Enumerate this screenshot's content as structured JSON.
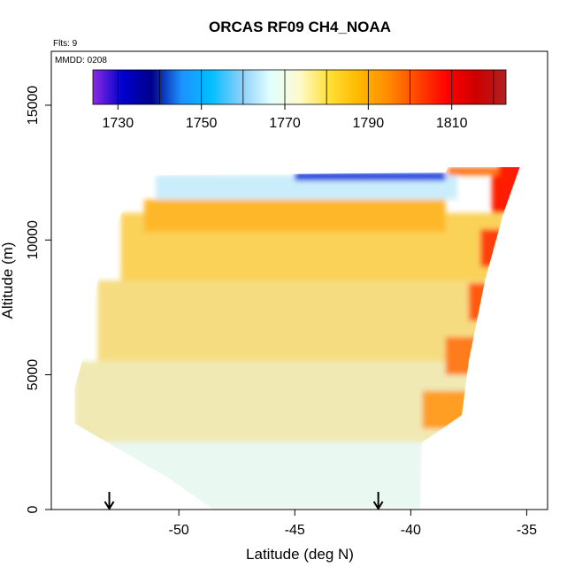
{
  "chart_data": {
    "type": "heatmap",
    "title": "ORCAS RF09 CH4_NOAA",
    "note_flights": "Flts: 9",
    "note_date": "MMDD: 0208",
    "xlabel": "Latitude (deg N)",
    "ylabel": "Altitude (m)",
    "xlim": [
      -55.5,
      -34.1
    ],
    "ylim": [
      0,
      17000
    ],
    "x_ticks": [
      -50,
      -45,
      -40,
      -35
    ],
    "x_tick_labels": [
      "-50",
      "-45",
      "-40",
      "-35"
    ],
    "y_ticks": [
      0,
      5000,
      10000,
      15000
    ],
    "y_tick_labels": [
      "0",
      "5000",
      "10000",
      "15000"
    ],
    "grid": false,
    "colorbar": {
      "placement": "top-inside",
      "range": [
        1724,
        1823
      ],
      "ticks": [
        1730,
        1750,
        1770,
        1790,
        1810
      ],
      "tick_labels": [
        "1730",
        "1750",
        "1770",
        "1790",
        "1810"
      ],
      "colors": [
        "#8a2be2",
        "#0000cd",
        "#00008b",
        "#1e90ff",
        "#00bfff",
        "#87cefa",
        "#e0ffff",
        "#fffacd",
        "#ffe135",
        "#ffb800",
        "#ff8c00",
        "#ff4500",
        "#ff0000",
        "#cd0000",
        "#b22222"
      ]
    },
    "flight_markers_lat": [
      -53,
      -41.4
    ],
    "color_legend": {
      "1730": "#1a1ad0",
      "1750": "#1e9cff",
      "1770": "#e8fbfb",
      "1790": "#ffc830",
      "1810": "#ff1e00"
    },
    "field_layers": [
      {
        "alt_range": [
          0,
          2500
        ],
        "lat_range": [
          -54.5,
          -39.5
        ],
        "value": 1771
      },
      {
        "alt_range": [
          2500,
          5500
        ],
        "lat_range": [
          -54.5,
          -37.5
        ],
        "value": 1777
      },
      {
        "alt_range": [
          5500,
          8500
        ],
        "lat_range": [
          -53.5,
          -36.8
        ],
        "value": 1782
      },
      {
        "alt_range": [
          8500,
          11000
        ],
        "lat_range": [
          -52.5,
          -36.0
        ],
        "value": 1786
      },
      {
        "alt_range": [
          10300,
          11500
        ],
        "lat_range": [
          -51.5,
          -38.5
        ],
        "value": 1792
      },
      {
        "alt_range": [
          11500,
          12400
        ],
        "lat_range": [
          -51.0,
          -38.0
        ],
        "value": 1767
      },
      {
        "alt_range": [
          12200,
          12500
        ],
        "lat_range": [
          -45.0,
          -38.5
        ],
        "value": 1736
      },
      {
        "alt_range": [
          12400,
          12700
        ],
        "lat_range": [
          -38.4,
          -35.3
        ],
        "value": 1800
      }
    ]
  }
}
